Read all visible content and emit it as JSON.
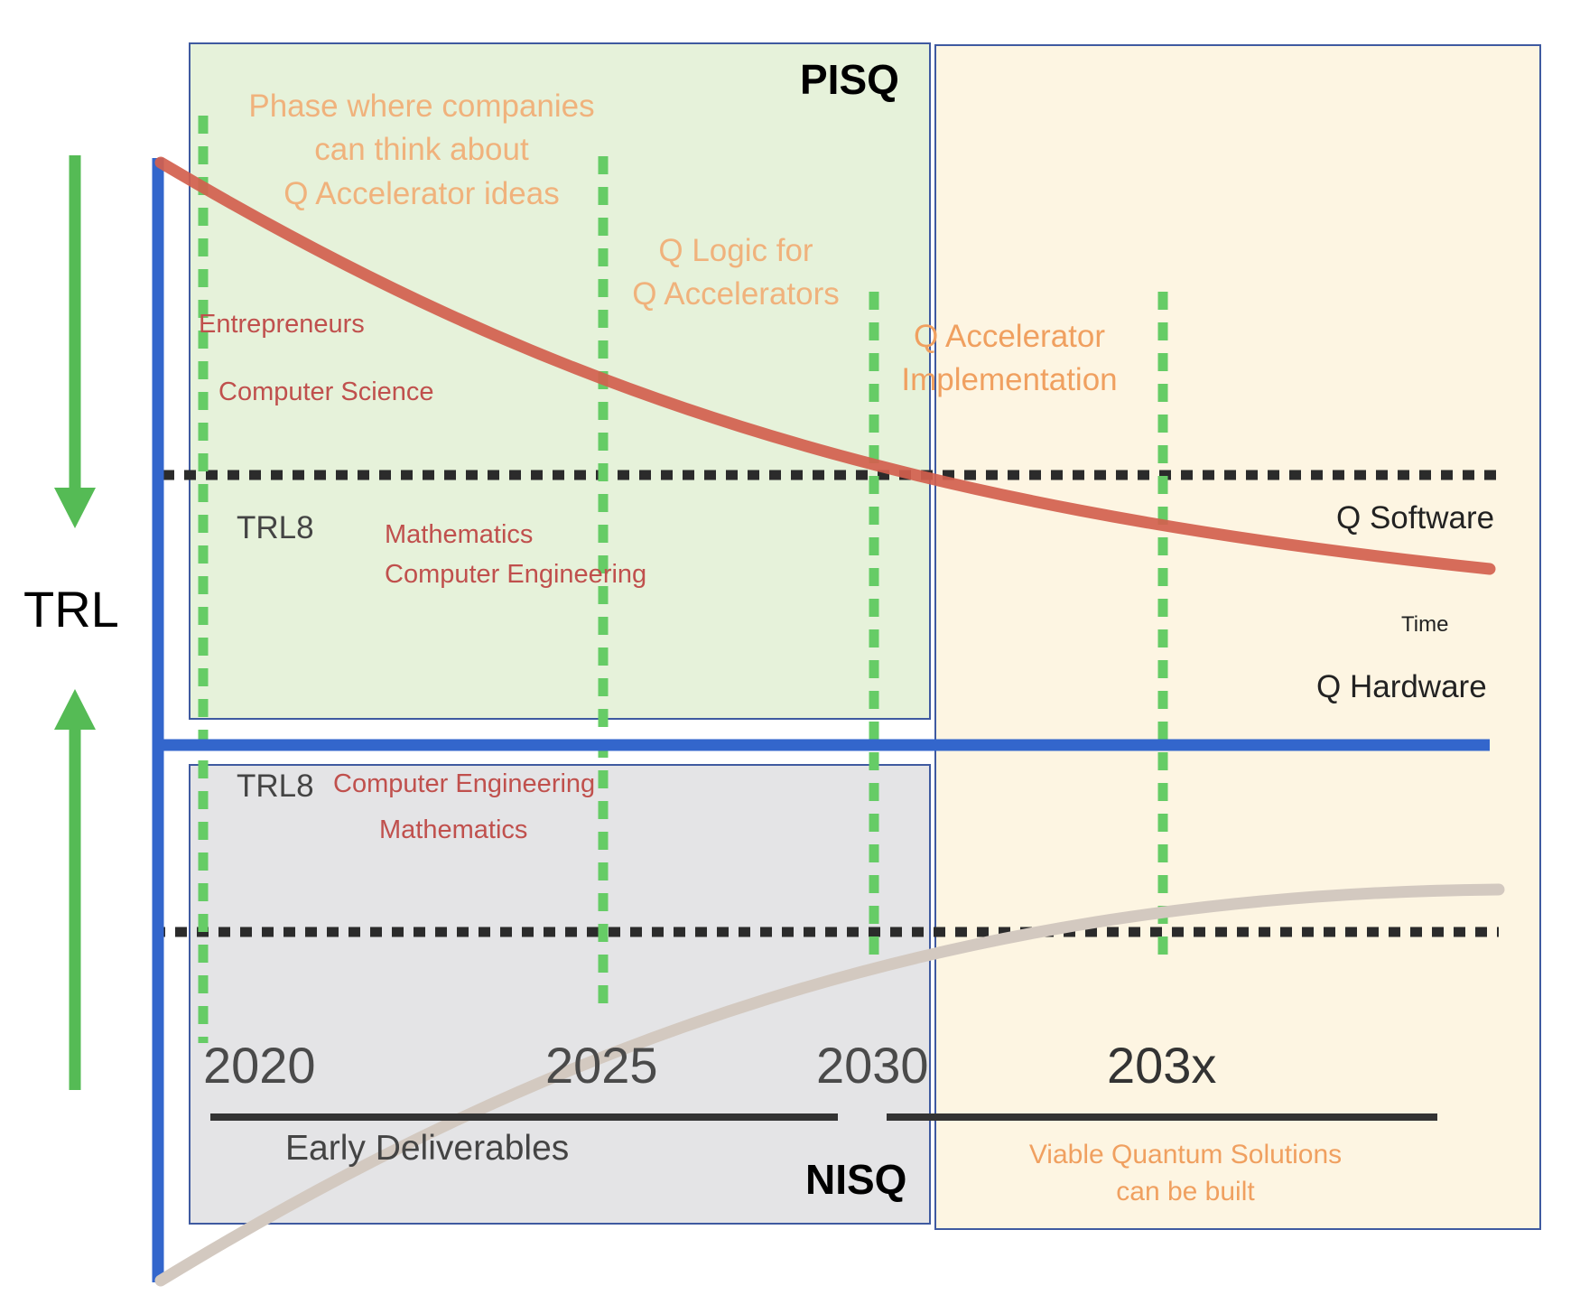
{
  "labels": {
    "pisq": "PISQ",
    "nisq": "NISQ",
    "trl_axis": "TRL",
    "time": "Time",
    "q_software": "Q Software",
    "q_hardware": "Q Hardware",
    "trl8_top": "TRL8",
    "trl8_bottom": "TRL8",
    "early_deliverables": "Early Deliverables",
    "viable_1": "Viable  Quantum Solutions",
    "viable_2": "can be built"
  },
  "phases": {
    "phase1": [
      "Phase where companies",
      "can think about",
      "Q Accelerator ideas"
    ],
    "phase2": [
      "Q Logic for",
      "Q Accelerators"
    ],
    "phase3": [
      "Q Accelerator",
      "Implementation"
    ]
  },
  "disciplines": {
    "entrepreneurs": "Entrepreneurs",
    "cs": "Computer Science",
    "math_top": "Mathematics",
    "ce_top": "Computer Engineering",
    "ce_bottom": "Computer Engineering",
    "math_bottom": "Mathematics"
  },
  "years": [
    "2020",
    "2025",
    "2030",
    "203x"
  ],
  "colors": {
    "pisq_box": "#e6f2da",
    "nisq_box": "#e4e4e6",
    "future_box": "#fdf4e0",
    "box_border": "#3f5aa0",
    "axis_blue": "#3366cc",
    "software_curve": "#d2604e",
    "hardware_curve": "#d3c9c0",
    "milestone_green": "#66cc66",
    "arrow_green": "#55bb55",
    "trl_dots": "#2b2b2b"
  }
}
